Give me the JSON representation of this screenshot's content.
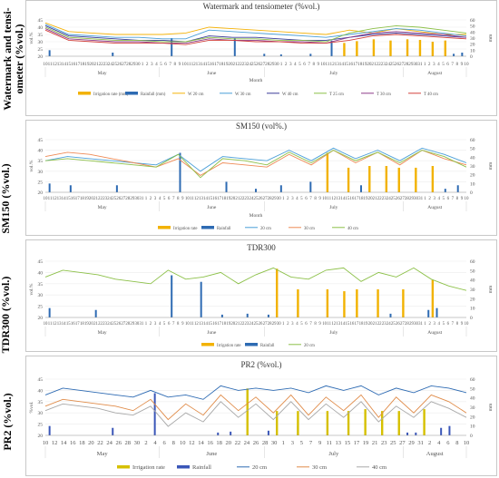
{
  "row_labels": [
    "Watermark and tensi-\nometer (%vol.)",
    "SM150 (%vol.)",
    "TDR300 (%vol.)",
    "PR2 (%vol.)"
  ],
  "colors": {
    "irrigation": "#f2b200",
    "rainfall": "#2e6bb3",
    "w20": "#f5b30a",
    "w30": "#4a9fd8",
    "w40": "#3b3b9a",
    "t25": "#8cc048",
    "t30": "#8e3b8a",
    "t40": "#d2403c",
    "sm20": "#4a9fd8",
    "sm30": "#ee8a55",
    "sm40": "#8cc048",
    "tdr20": "#8cc048",
    "pr20": "#2e6bb3",
    "pr30": "#e08c4a",
    "pr40": "#a8a8a8",
    "irr_pr2": "#d6c000",
    "rain_pr2": "#3a56b8"
  },
  "chart_data": [
    {
      "type": "line",
      "title": "Watermark and tensiometer (%vol.)",
      "xlabel": "Month",
      "ylabel": "vol.%",
      "y2label": "mm",
      "ylim": [
        20,
        45
      ],
      "y2lim": [
        0,
        60
      ],
      "months": [
        "May",
        "June",
        "July",
        "August"
      ],
      "legend": [
        "Irrigation rate (mm)",
        "Rainfall (mm)",
        "W 20 cm",
        "W 30 cm",
        "W 40 cm",
        "T 25 cm",
        "T 30 cm",
        "T 40 cm"
      ],
      "yticks": [
        "45",
        "40",
        "35",
        "30",
        "25",
        "20"
      ],
      "y2ticks": [
        "60",
        "50",
        "40",
        "30",
        "20",
        "10",
        "0"
      ],
      "series": [
        {
          "name": "W 20 cm",
          "values": [
            43,
            37,
            36,
            35,
            35,
            35,
            36,
            40,
            39,
            38,
            37,
            36,
            35,
            38,
            36,
            39,
            37,
            35,
            35
          ]
        },
        {
          "name": "W 30 cm",
          "values": [
            42,
            35,
            34,
            33,
            33,
            32,
            32,
            38,
            37,
            36,
            35,
            34,
            33,
            35,
            37,
            39,
            38,
            36,
            34
          ]
        },
        {
          "name": "W 40 cm",
          "values": [
            41,
            34,
            33,
            32,
            31,
            31,
            30,
            34,
            33,
            33,
            32,
            31,
            31,
            33,
            35,
            36,
            35,
            34,
            33
          ]
        },
        {
          "name": "T 25 cm",
          "values": [
            40,
            33,
            32,
            31,
            31,
            30,
            30,
            33,
            32,
            32,
            31,
            31,
            30,
            36,
            39,
            41,
            40,
            38,
            36
          ]
        },
        {
          "name": "T 30 cm",
          "values": [
            39,
            32,
            31,
            30,
            30,
            29,
            29,
            32,
            31,
            31,
            30,
            30,
            29,
            33,
            36,
            37,
            36,
            35,
            33
          ]
        },
        {
          "name": "T 40 cm",
          "values": [
            38,
            31,
            30,
            29,
            29,
            29,
            28,
            31,
            31,
            30,
            30,
            29,
            29,
            31,
            34,
            35,
            34,
            33,
            32
          ]
        }
      ],
      "irrigation": [
        [
          0.71,
          22
        ],
        [
          0.74,
          25
        ],
        [
          0.78,
          28
        ],
        [
          0.82,
          26
        ],
        [
          0.86,
          28
        ],
        [
          0.89,
          27
        ],
        [
          0.92,
          24
        ],
        [
          0.95,
          26
        ]
      ],
      "rainfall": [
        [
          0.01,
          10
        ],
        [
          0.16,
          6
        ],
        [
          0.3,
          30
        ],
        [
          0.45,
          30
        ],
        [
          0.52,
          4
        ],
        [
          0.56,
          3
        ],
        [
          0.63,
          4
        ],
        [
          0.68,
          26
        ],
        [
          0.97,
          4
        ],
        [
          0.99,
          6
        ]
      ]
    },
    {
      "type": "line",
      "title": "SM150 (vol%.)",
      "xlabel": "Month",
      "ylabel": "vol.%",
      "y2label": "mm",
      "ylim": [
        20,
        45
      ],
      "y2lim": [
        0,
        60
      ],
      "months": [
        "May",
        "June",
        "July",
        "August"
      ],
      "legend": [
        "Irrigation rate",
        "Rainfall",
        "20 cm",
        "30 cm",
        "40 cm"
      ],
      "yticks": [
        "45",
        "40",
        "35",
        "30",
        "25",
        "20"
      ],
      "y2ticks": [
        "60",
        "50",
        "40",
        "30",
        "20",
        "10",
        "0"
      ],
      "series": [
        {
          "name": "20 cm",
          "values": [
            35,
            37,
            36,
            35,
            34,
            33,
            38,
            30,
            37,
            36,
            35,
            40,
            35,
            41,
            36,
            40,
            35,
            41,
            38,
            34
          ]
        },
        {
          "name": "30 cm",
          "values": [
            37,
            39,
            38,
            36,
            34,
            32,
            36,
            28,
            34,
            33,
            32,
            38,
            33,
            40,
            34,
            39,
            33,
            40,
            36,
            33
          ]
        },
        {
          "name": "40 cm",
          "values": [
            35,
            36,
            35,
            34,
            33,
            32,
            38,
            27,
            36,
            35,
            33,
            39,
            34,
            40,
            35,
            39,
            34,
            40,
            37,
            32
          ]
        }
      ],
      "irrigation": [
        [
          0.67,
          45
        ],
        [
          0.72,
          28
        ],
        [
          0.77,
          30
        ],
        [
          0.81,
          30
        ],
        [
          0.84,
          28
        ],
        [
          0.88,
          28
        ],
        [
          0.92,
          30
        ]
      ],
      "rainfall": [
        [
          0.01,
          10
        ],
        [
          0.06,
          8
        ],
        [
          0.17,
          8
        ],
        [
          0.32,
          45
        ],
        [
          0.43,
          12
        ],
        [
          0.5,
          4
        ],
        [
          0.56,
          8
        ],
        [
          0.63,
          12
        ],
        [
          0.75,
          8
        ],
        [
          0.95,
          4
        ],
        [
          0.98,
          8
        ]
      ]
    },
    {
      "type": "line",
      "title": "TDR300",
      "xlabel": "",
      "ylabel": "vol.%",
      "y2label": "mm",
      "ylim": [
        20,
        45
      ],
      "y2lim": [
        0,
        60
      ],
      "months": [
        "May",
        "June",
        "July",
        "August"
      ],
      "legend": [
        "Irrigation rate",
        "Rainfall",
        "20 cm"
      ],
      "yticks": [
        "45",
        "40",
        "35",
        "30",
        "25",
        "20"
      ],
      "y2ticks": [
        "60",
        "50",
        "40",
        "30",
        "20",
        "10",
        "0"
      ],
      "series": [
        {
          "name": "20 cm",
          "values": [
            38,
            41,
            40,
            39,
            37,
            36,
            35,
            41,
            37,
            38,
            40,
            35,
            39,
            42,
            38,
            37,
            41,
            42,
            36,
            40,
            38,
            42,
            37,
            34,
            32
          ]
        }
      ],
      "irrigation": [
        [
          0.55,
          52
        ],
        [
          0.6,
          30
        ],
        [
          0.67,
          30
        ],
        [
          0.71,
          28
        ],
        [
          0.74,
          30
        ],
        [
          0.79,
          30
        ],
        [
          0.85,
          30
        ],
        [
          0.92,
          40
        ]
      ],
      "rainfall": [
        [
          0.01,
          10
        ],
        [
          0.12,
          8
        ],
        [
          0.3,
          45
        ],
        [
          0.37,
          38
        ],
        [
          0.42,
          3
        ],
        [
          0.48,
          4
        ],
        [
          0.53,
          3
        ],
        [
          0.6,
          8
        ],
        [
          0.82,
          4
        ],
        [
          0.91,
          8
        ],
        [
          0.93,
          10
        ]
      ]
    },
    {
      "type": "line",
      "title": "PR2 (%vol.)",
      "xlabel": "",
      "ylabel": "%vol.",
      "y2label": "mm",
      "ylim": [
        20,
        45
      ],
      "y2lim": [
        0,
        60
      ],
      "months": [
        "May",
        "June",
        "July",
        "August"
      ],
      "legend": [
        "Irrigation rate",
        "Rainfall",
        "20 cm",
        "30 cm",
        "40 cm"
      ],
      "yticks": [
        "45",
        "40",
        "35",
        "30",
        "25",
        "20"
      ],
      "y2ticks": [
        "60",
        "50",
        "40",
        "30",
        "20",
        "10",
        "0"
      ],
      "series": [
        {
          "name": "20 cm",
          "values": [
            38,
            41,
            40,
            39,
            38,
            37,
            40,
            37,
            38,
            36,
            42,
            40,
            41,
            40,
            41,
            39,
            42,
            40,
            42,
            38,
            41,
            39,
            42,
            41,
            39
          ]
        },
        {
          "name": "30 cm",
          "values": [
            33,
            36,
            35,
            34,
            33,
            31,
            36,
            27,
            34,
            29,
            38,
            31,
            37,
            30,
            38,
            29,
            37,
            31,
            38,
            28,
            37,
            30,
            38,
            35,
            30
          ]
        },
        {
          "name": "40 cm",
          "values": [
            31,
            34,
            33,
            32,
            30,
            29,
            33,
            24,
            30,
            26,
            35,
            28,
            34,
            27,
            35,
            27,
            34,
            28,
            35,
            26,
            33,
            28,
            35,
            32,
            28
          ]
        }
      ],
      "irrigation": [
        [
          0.48,
          50
        ],
        [
          0.55,
          26
        ],
        [
          0.6,
          26
        ],
        [
          0.67,
          26
        ],
        [
          0.72,
          26
        ],
        [
          0.76,
          28
        ],
        [
          0.8,
          26
        ],
        [
          0.84,
          26
        ],
        [
          0.9,
          28
        ]
      ],
      "rainfall": [
        [
          0.01,
          10
        ],
        [
          0.16,
          8
        ],
        [
          0.26,
          45
        ],
        [
          0.41,
          3
        ],
        [
          0.44,
          4
        ],
        [
          0.53,
          5
        ],
        [
          0.6,
          10
        ],
        [
          0.86,
          3
        ],
        [
          0.88,
          3
        ],
        [
          0.94,
          8
        ],
        [
          0.96,
          10
        ]
      ]
    }
  ]
}
